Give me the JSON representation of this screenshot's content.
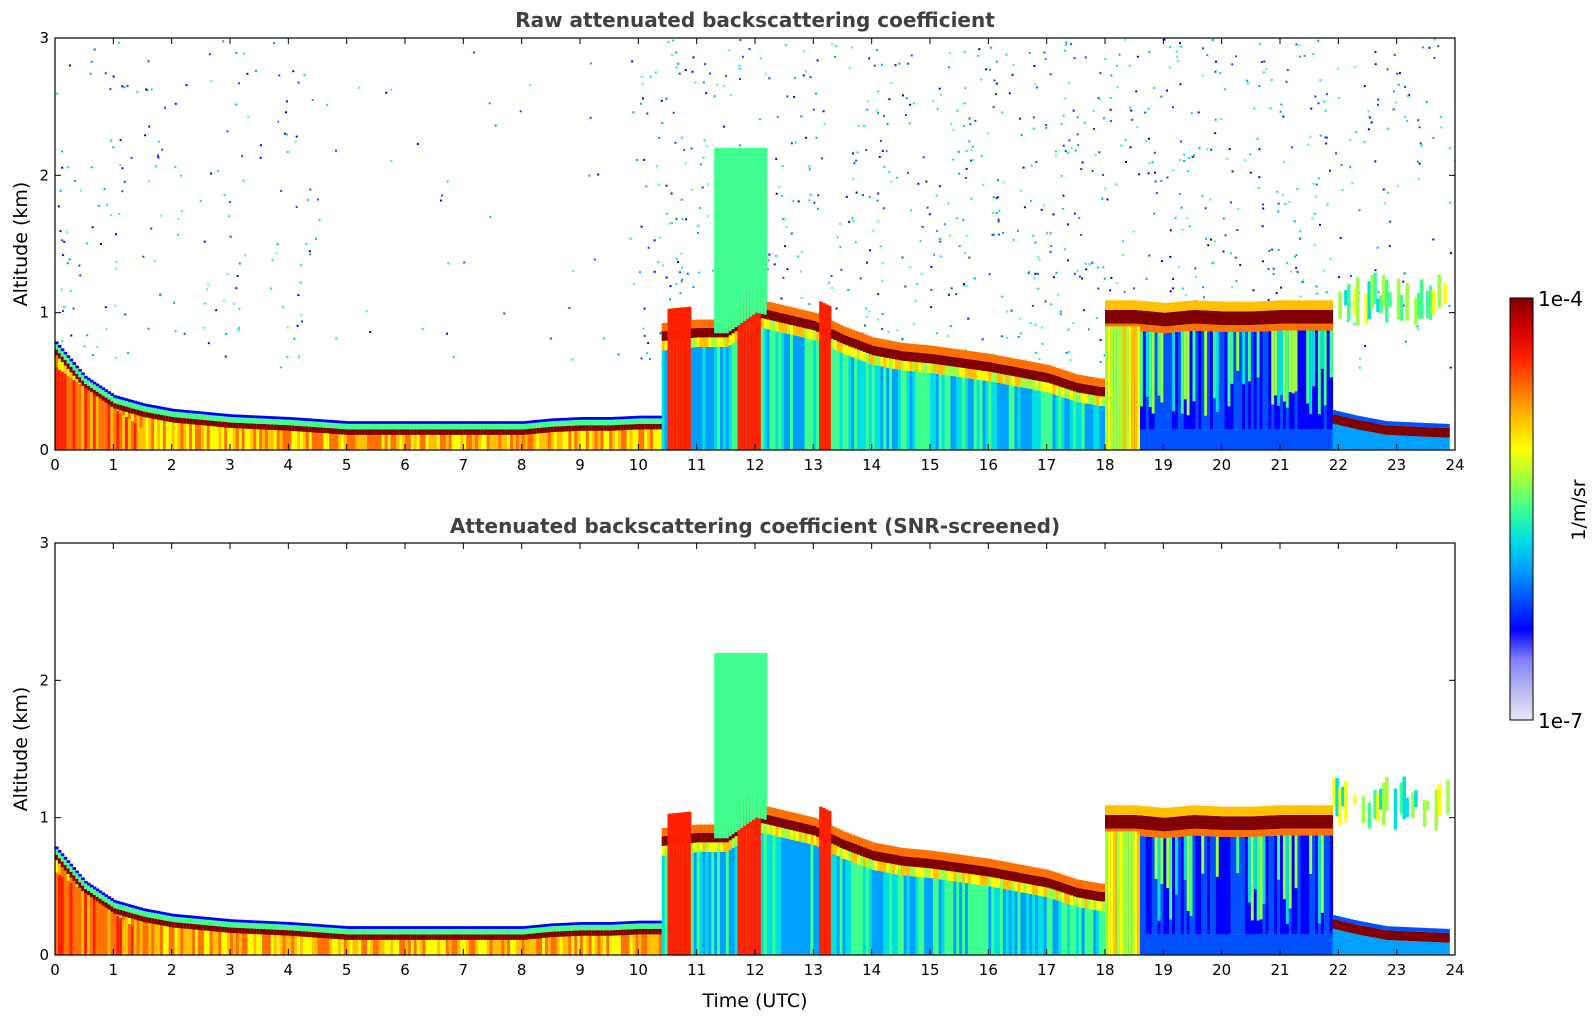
{
  "chart_data": [
    {
      "type": "heatmap",
      "title": "Raw attenuated backscattering coefficient",
      "xlabel": "",
      "ylabel": "Altitude (km)",
      "xlim": [
        0,
        24
      ],
      "ylim": [
        0,
        3
      ],
      "xticks": [
        "0",
        "1",
        "2",
        "3",
        "4",
        "5",
        "6",
        "7",
        "8",
        "9",
        "10",
        "11",
        "12",
        "13",
        "14",
        "15",
        "16",
        "17",
        "18",
        "19",
        "20",
        "21",
        "22",
        "23",
        "24"
      ],
      "yticks": [
        "0",
        "1",
        "2",
        "3"
      ],
      "grid": false,
      "colormap": "jet",
      "screened": false,
      "features": [
        {
          "kind": "boundary_layer_top",
          "t": [
            0,
            0.5,
            1,
            1.5,
            2,
            3,
            4,
            5,
            6,
            7,
            8,
            8.5,
            9,
            9.5,
            10,
            10.4
          ],
          "alt": [
            0.75,
            0.5,
            0.36,
            0.3,
            0.26,
            0.22,
            0.2,
            0.17,
            0.17,
            0.17,
            0.17,
            0.19,
            0.2,
            0.2,
            0.21,
            0.21
          ]
        },
        {
          "kind": "cloud_layer",
          "t": [
            10.3,
            11,
            11.5,
            12,
            12.5,
            13,
            13.5,
            14,
            14.5,
            15,
            15.5,
            16,
            16.5,
            17,
            17.5,
            17.9
          ],
          "alt": [
            0.82,
            0.85,
            0.85,
            1.0,
            0.95,
            0.9,
            0.8,
            0.72,
            0.68,
            0.66,
            0.63,
            0.6,
            0.56,
            0.52,
            0.45,
            0.42
          ]
        },
        {
          "kind": "cloud_layer",
          "t": [
            18,
            18.5,
            19,
            19.5,
            20,
            20.5,
            21,
            21.5,
            21.9
          ],
          "alt": [
            0.97,
            0.97,
            0.95,
            0.97,
            0.96,
            0.96,
            0.97,
            0.97,
            0.97
          ]
        },
        {
          "kind": "boundary_layer_top",
          "t": [
            21.9,
            22.3,
            22.8,
            23.3,
            23.85
          ],
          "alt": [
            0.24,
            0.2,
            0.16,
            0.15,
            0.14
          ]
        }
      ]
    },
    {
      "type": "heatmap",
      "title": "Attenuated backscattering coefficient (SNR-screened)",
      "xlabel": "Time (UTC)",
      "ylabel": "Altitude (km)",
      "xlim": [
        0,
        24
      ],
      "ylim": [
        0,
        3
      ],
      "xticks": [
        "0",
        "1",
        "2",
        "3",
        "4",
        "5",
        "6",
        "7",
        "8",
        "9",
        "10",
        "11",
        "12",
        "13",
        "14",
        "15",
        "16",
        "17",
        "18",
        "19",
        "20",
        "21",
        "22",
        "23",
        "24"
      ],
      "yticks": [
        "0",
        "1",
        "2",
        "3"
      ],
      "grid": false,
      "colormap": "jet",
      "screened": true,
      "features": [
        {
          "kind": "boundary_layer_top",
          "t": [
            0,
            0.5,
            1,
            1.5,
            2,
            3,
            4,
            5,
            6,
            7,
            8,
            8.5,
            9,
            9.5,
            10,
            10.4
          ],
          "alt": [
            0.75,
            0.5,
            0.36,
            0.3,
            0.26,
            0.22,
            0.2,
            0.17,
            0.17,
            0.17,
            0.17,
            0.19,
            0.2,
            0.2,
            0.21,
            0.21
          ]
        },
        {
          "kind": "cloud_layer",
          "t": [
            10.3,
            11,
            11.5,
            12,
            12.5,
            13,
            13.5,
            14,
            14.5,
            15,
            15.5,
            16,
            16.5,
            17,
            17.5,
            17.9
          ],
          "alt": [
            0.82,
            0.85,
            0.85,
            1.0,
            0.95,
            0.9,
            0.8,
            0.72,
            0.68,
            0.66,
            0.63,
            0.6,
            0.56,
            0.52,
            0.45,
            0.42
          ]
        },
        {
          "kind": "cloud_layer",
          "t": [
            18,
            18.5,
            19,
            19.5,
            20,
            20.5,
            21,
            21.5,
            21.9
          ],
          "alt": [
            0.97,
            0.97,
            0.95,
            0.97,
            0.96,
            0.96,
            0.97,
            0.97,
            0.97
          ]
        },
        {
          "kind": "boundary_layer_top",
          "t": [
            21.9,
            22.3,
            22.8,
            23.3,
            23.85
          ],
          "alt": [
            0.24,
            0.2,
            0.16,
            0.15,
            0.14
          ]
        }
      ]
    }
  ],
  "colorbar": {
    "label": "1/m/sr",
    "max_label": "1e-4",
    "min_label": "1e-7",
    "colors": [
      "#e8e8f8",
      "#b8b8f0",
      "#8080ff",
      "#0000ff",
      "#0050ff",
      "#00a0ff",
      "#00e0e0",
      "#40ff90",
      "#a0ff40",
      "#ffff00",
      "#ffc000",
      "#ff7000",
      "#ff2000",
      "#d00000",
      "#800000"
    ]
  }
}
